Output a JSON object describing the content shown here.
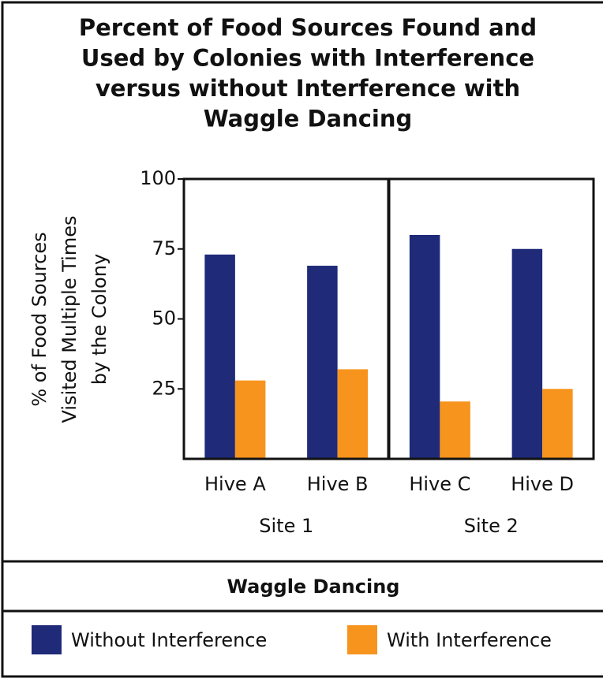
{
  "chart_data": {
    "type": "bar",
    "title": [
      "Percent of Food Sources Found and",
      "Used by Colonies with Interference",
      "versus without Interference with",
      "Waggle Dancing"
    ],
    "ylabel": [
      "% of Food Sources",
      "Visited Multiple Times",
      "by the Colony"
    ],
    "categories": [
      "Hive A",
      "Hive B",
      "Hive C",
      "Hive D"
    ],
    "groups": [
      "Site 1",
      "Site 2"
    ],
    "legend_title": "Waggle Dancing",
    "series": [
      {
        "name": "Without Interference",
        "color": "#1f2a78",
        "values": [
          73,
          69,
          80,
          75
        ]
      },
      {
        "name": "With Interference",
        "color": "#f7941d",
        "values": [
          28,
          32,
          20.5,
          25
        ]
      }
    ],
    "ylim": [
      0,
      100
    ],
    "yticks": [
      25,
      50,
      75,
      100
    ]
  }
}
